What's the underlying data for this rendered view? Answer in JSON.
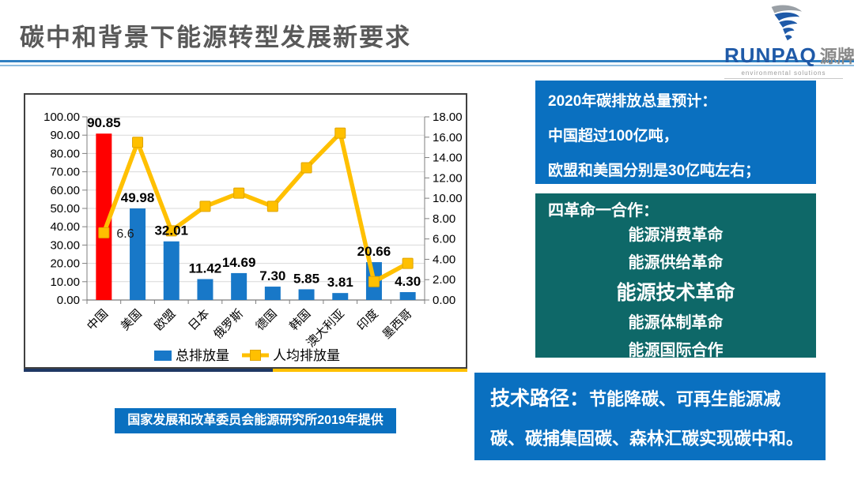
{
  "slide": {
    "title": "碳中和背景下能源转型发展新要求",
    "logo": {
      "brand": "RUNPAQ",
      "brand_cn": "源牌",
      "tagline": "environmental solutions"
    }
  },
  "colors": {
    "accent_blue": "#0a70c0",
    "teal": "#0e6868",
    "bar_blue": "#1878c8",
    "bar_red": "#ff0000",
    "line_yellow": "#ffc000",
    "navy_strip": "#1f3864",
    "title_gray": "#595959",
    "brand_blue": "#1f5aa8"
  },
  "chart_data": {
    "type": "bar+line",
    "title": "",
    "categories": [
      "中国",
      "美国",
      "欧盟",
      "日本",
      "俄罗斯",
      "德国",
      "韩国",
      "澳大利亚",
      "印度",
      "墨西哥"
    ],
    "series": [
      {
        "name": "总排放量",
        "type": "bar",
        "axis": "left",
        "values": [
          90.85,
          49.98,
          32.01,
          11.42,
          14.69,
          7.3,
          5.85,
          3.81,
          20.66,
          4.3
        ],
        "color": "#1878c8",
        "highlight": {
          "index": 0,
          "color": "#ff0000"
        },
        "data_labels": true
      },
      {
        "name": "人均排放量",
        "type": "line",
        "axis": "right",
        "values": [
          6.6,
          15.5,
          6.8,
          9.2,
          10.5,
          9.2,
          13.0,
          16.4,
          1.8,
          3.6
        ],
        "color": "#ffc000",
        "marker": "square",
        "point_label": {
          "index": 0,
          "text": "6.6"
        }
      }
    ],
    "left_axis": {
      "min": 0,
      "max": 100,
      "step": 10,
      "format": "0.00"
    },
    "right_axis": {
      "min": 0,
      "max": 18,
      "step": 2,
      "format": "0.00"
    },
    "legend_position": "bottom",
    "gridlines": "horizontal"
  },
  "caption": "国家发展和改革委员会能源研究所2019年提供",
  "boxes": {
    "emissions": {
      "lines": [
        "2020年碳排放总量预计：",
        "中国超过100亿吨，",
        "欧盟和美国分别是30亿吨左右；"
      ]
    },
    "revolutions": {
      "heading": "四革命一合作：",
      "items": [
        "能源消费革命",
        "能源供给革命",
        "能源技术革命",
        "能源体制革命",
        "能源国际合作"
      ],
      "highlight_index": 2
    },
    "tech_path": {
      "lead": "技术路径：",
      "body": "节能降碳、可再生能源减碳、碳捕集固碳、森林汇碳实现碳中和。"
    }
  }
}
